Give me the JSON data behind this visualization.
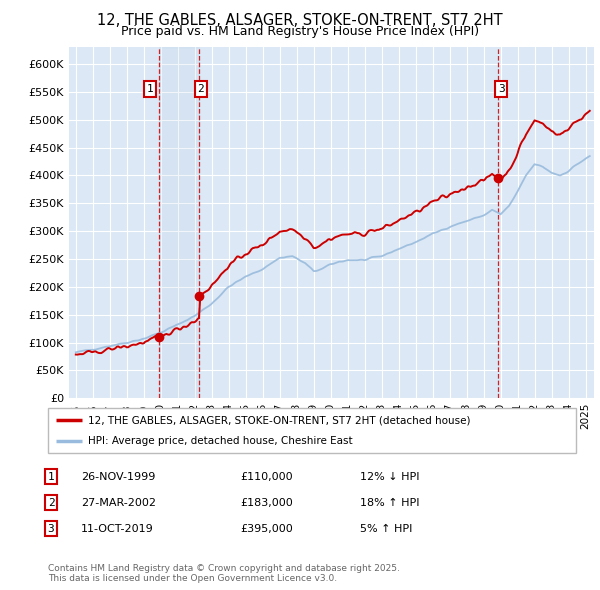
{
  "title_line1": "12, THE GABLES, ALSAGER, STOKE-ON-TRENT, ST7 2HT",
  "title_line2": "Price paid vs. HM Land Registry's House Price Index (HPI)",
  "bg_color": "#dce8f5",
  "sale_color": "#cc0000",
  "hpi_color": "#99bbdd",
  "legend_entries": [
    "12, THE GABLES, ALSAGER, STOKE-ON-TRENT, ST7 2HT (detached house)",
    "HPI: Average price, detached house, Cheshire East"
  ],
  "table_rows": [
    {
      "num": "1",
      "date": "26-NOV-1999",
      "price": "£110,000",
      "change": "12% ↓ HPI"
    },
    {
      "num": "2",
      "date": "27-MAR-2002",
      "price": "£183,000",
      "change": "18% ↑ HPI"
    },
    {
      "num": "3",
      "date": "11-OCT-2019",
      "price": "£395,000",
      "change": "5% ↑ HPI"
    }
  ],
  "footer": "Contains HM Land Registry data © Crown copyright and database right 2025.\nThis data is licensed under the Open Government Licence v3.0.",
  "ylim": [
    0,
    630000
  ],
  "yticks": [
    0,
    50000,
    100000,
    150000,
    200000,
    250000,
    300000,
    350000,
    400000,
    450000,
    500000,
    550000,
    600000
  ],
  "ytick_labels": [
    "£0",
    "£50K",
    "£100K",
    "£150K",
    "£200K",
    "£250K",
    "£300K",
    "£350K",
    "£400K",
    "£450K",
    "£500K",
    "£550K",
    "£600K"
  ],
  "t1": 1999.917,
  "t2": 2002.25,
  "t3": 2019.833,
  "p1": 110000,
  "p2": 183000,
  "p3": 395000
}
